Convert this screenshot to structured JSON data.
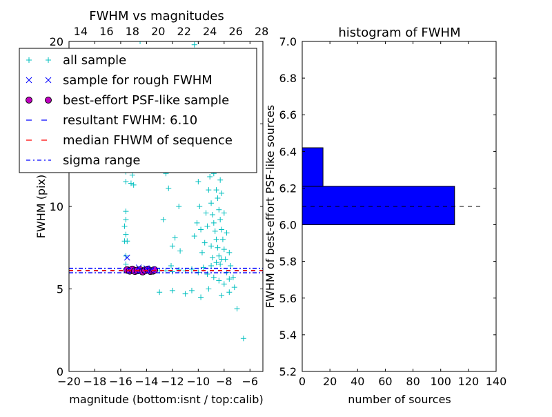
{
  "chart_data": [
    {
      "type": "scatter",
      "title": "FWHM vs magnitudes",
      "xlabel": "magnitude (bottom:isnt / top:calib)",
      "ylabel": "FWHM (pix)",
      "xlim": [
        -20,
        -5
      ],
      "ylim": [
        0,
        20
      ],
      "xticks": [
        "−20",
        "−18",
        "−16",
        "−14",
        "−12",
        "−10",
        "−8",
        "−6"
      ],
      "xtick_values": [
        -20,
        -18,
        -16,
        -14,
        -12,
        -10,
        -8,
        -6
      ],
      "top_xticks": [
        "14",
        "16",
        "18",
        "20",
        "22",
        "24",
        "26",
        "28"
      ],
      "top_xtick_values": [
        14,
        16,
        18,
        20,
        22,
        24,
        26,
        28
      ],
      "top_offset": 33.1,
      "yticks": [
        "0",
        "5",
        "10",
        "15",
        "20"
      ],
      "ytick_values": [
        0,
        5,
        10,
        15,
        20
      ],
      "legend": {
        "placement": "top-left",
        "entries": [
          {
            "label": "all sample",
            "marker": "plus",
            "color": "#00bfbf"
          },
          {
            "label": "sample for rough FWHM",
            "marker": "x",
            "color": "#0000ff"
          },
          {
            "label": "best-effort PSF-like sample",
            "marker": "circle",
            "color": "#bf00bf"
          },
          {
            "label": "resultant FWHM: 6.10",
            "marker": "dashed",
            "color": "#0000ff"
          },
          {
            "label": "median FHWM of sequence",
            "marker": "dashed",
            "color": "#ff0000"
          },
          {
            "label": "sigma range",
            "marker": "dashdot",
            "color": "#0000ff"
          }
        ]
      },
      "series": [
        {
          "name": "all sample",
          "color": "#00bfbf",
          "points": [
            [
              -15.6,
              6.5
            ],
            [
              -15.6,
              7.0
            ],
            [
              -15.7,
              7.9
            ],
            [
              -15.5,
              7.9
            ],
            [
              -15.6,
              8.3
            ],
            [
              -15.7,
              8.8
            ],
            [
              -15.6,
              9.2
            ],
            [
              -15.6,
              9.7
            ],
            [
              -15.6,
              11.5
            ],
            [
              -15.6,
              12.1
            ],
            [
              -15.2,
              11.4
            ],
            [
              -15.1,
              11.9
            ],
            [
              -15.0,
              11.3
            ],
            [
              -15.3,
              12.5
            ],
            [
              -14.5,
              20.0
            ],
            [
              -10.3,
              19.8
            ],
            [
              -12.5,
              12.0
            ],
            [
              -12.7,
              9.2
            ],
            [
              -11.8,
              8.1
            ],
            [
              -12.0,
              7.6
            ],
            [
              -11.4,
              7.3
            ],
            [
              -12.3,
              11.1
            ],
            [
              -12.1,
              6.4
            ],
            [
              -11.0,
              12.4
            ],
            [
              -11.5,
              10.0
            ],
            [
              -13.0,
              4.8
            ],
            [
              -12.0,
              4.9
            ],
            [
              -11.0,
              4.7
            ],
            [
              -6.5,
              2.0
            ],
            [
              -7.0,
              3.8
            ],
            [
              -10.5,
              4.9
            ],
            [
              -9.8,
              4.5
            ],
            [
              -8.2,
              4.6
            ],
            [
              -7.6,
              4.8
            ],
            [
              -7.2,
              5.1
            ],
            [
              -9.2,
              5.0
            ],
            [
              -13.0,
              6.1
            ],
            [
              -12.5,
              6.1
            ],
            [
              -12.0,
              6.05
            ],
            [
              -11.5,
              6.15
            ],
            [
              -11.0,
              6.1
            ],
            [
              -10.5,
              6.2
            ],
            [
              -10.0,
              6.0
            ],
            [
              -9.6,
              6.3
            ],
            [
              -9.3,
              5.9
            ],
            [
              -9.0,
              6.4
            ],
            [
              -8.8,
              5.7
            ],
            [
              -8.6,
              6.6
            ],
            [
              -8.4,
              5.5
            ],
            [
              -8.2,
              6.8
            ],
            [
              -8.0,
              5.3
            ],
            [
              -7.8,
              6.0
            ],
            [
              -7.6,
              5.6
            ],
            [
              -10.0,
              11.5
            ],
            [
              -9.8,
              12.8
            ],
            [
              -9.6,
              13.5
            ],
            [
              -9.4,
              14.2
            ],
            [
              -9.2,
              11.0
            ],
            [
              -9.0,
              10.2
            ],
            [
              -8.9,
              9.5
            ],
            [
              -8.8,
              9.0
            ],
            [
              -8.7,
              8.5
            ],
            [
              -8.6,
              8.0
            ],
            [
              -8.5,
              7.5
            ],
            [
              -8.4,
              7.0
            ],
            [
              -8.3,
              6.5
            ],
            [
              -8.8,
              12.0
            ],
            [
              -9.1,
              13.0
            ],
            [
              -8.6,
              11.0
            ],
            [
              -8.5,
              10.5
            ],
            [
              -8.4,
              9.8
            ],
            [
              -8.3,
              9.2
            ],
            [
              -8.2,
              8.6
            ],
            [
              -8.1,
              8.0
            ],
            [
              -8.0,
              7.4
            ],
            [
              -7.9,
              6.8
            ],
            [
              -9.5,
              16.5
            ],
            [
              -9.3,
              17.5
            ],
            [
              -9.2,
              15.8
            ],
            [
              -9.0,
              16.0
            ],
            [
              -8.9,
              14.5
            ],
            [
              -8.7,
              13.8
            ],
            [
              -9.7,
              15.0
            ],
            [
              -10.2,
              14.0
            ],
            [
              -9.9,
              10.0
            ],
            [
              -10.1,
              9.0
            ],
            [
              -10.3,
              8.2
            ],
            [
              -9.5,
              7.8
            ],
            [
              -9.7,
              7.2
            ],
            [
              -9.0,
              7.6
            ],
            [
              -8.9,
              6.9
            ],
            [
              -9.3,
              8.8
            ],
            [
              -9.4,
              9.6
            ],
            [
              -8.2,
              10.8
            ],
            [
              -8.0,
              9.6
            ],
            [
              -7.8,
              8.4
            ],
            [
              -7.6,
              7.2
            ],
            [
              -7.5,
              6.4
            ],
            [
              -7.3,
              5.7
            ],
            [
              -8.5,
              12.4
            ],
            [
              -8.3,
              11.6
            ],
            [
              -9.1,
              11.8
            ],
            [
              -9.6,
              12.2
            ],
            [
              -10.0,
              12.6
            ],
            [
              -9.8,
              8.6
            ],
            [
              -15.4,
              6.1
            ],
            [
              -14.8,
              6.1
            ],
            [
              -14.2,
              6.2
            ],
            [
              -13.6,
              6.1
            ],
            [
              -13.4,
              6.15
            ]
          ]
        },
        {
          "name": "sample for rough FWHM",
          "color": "#0000ff",
          "points": [
            [
              -15.5,
              6.9
            ],
            [
              -14.6,
              6.3
            ],
            [
              -14.0,
              6.25
            ],
            [
              -13.6,
              6.2
            ]
          ]
        },
        {
          "name": "best-effort PSF-like sample",
          "color": "#bf00bf",
          "points": [
            [
              -15.5,
              6.15
            ],
            [
              -15.3,
              6.1
            ],
            [
              -15.1,
              6.18
            ],
            [
              -14.9,
              6.08
            ],
            [
              -14.7,
              6.12
            ],
            [
              -14.5,
              6.15
            ],
            [
              -14.3,
              6.05
            ],
            [
              -14.1,
              6.12
            ],
            [
              -13.9,
              6.18
            ],
            [
              -13.7,
              6.08
            ],
            [
              -13.5,
              6.1
            ],
            [
              -13.4,
              6.15
            ]
          ]
        }
      ],
      "hlines": [
        {
          "name": "resultant FWHM",
          "y": 6.1,
          "style": "dashed",
          "color": "#0000ff"
        },
        {
          "name": "median FHWM of sequence",
          "y": 6.12,
          "style": "dashed",
          "color": "#ff0000"
        },
        {
          "name": "sigma range low",
          "y": 5.98,
          "style": "dashdot",
          "color": "#0000ff"
        },
        {
          "name": "sigma range high",
          "y": 6.25,
          "style": "dashdot",
          "color": "#0000ff"
        }
      ]
    },
    {
      "type": "bar",
      "orientation": "horizontal",
      "title": "histogram of FWHM",
      "xlabel": "number of sources",
      "ylabel": "FWHM of best-effort PSF-like sources",
      "xlim": [
        0,
        140
      ],
      "ylim": [
        5.2,
        7.0
      ],
      "xticks": [
        "0",
        "20",
        "40",
        "60",
        "80",
        "100",
        "120",
        "140"
      ],
      "xtick_values": [
        0,
        20,
        40,
        60,
        80,
        100,
        120,
        140
      ],
      "yticks": [
        "5.2",
        "5.4",
        "5.6",
        "5.8",
        "6.0",
        "6.2",
        "6.4",
        "6.6",
        "6.8",
        "7.0"
      ],
      "ytick_values": [
        5.2,
        5.4,
        5.6,
        5.8,
        6.0,
        6.2,
        6.4,
        6.6,
        6.8,
        7.0
      ],
      "bins": [
        [
          6.0,
          6.21
        ],
        [
          6.21,
          6.42
        ]
      ],
      "values": [
        110,
        15
      ],
      "color": "#0000ff",
      "reference_line": {
        "y": 6.1,
        "x_max": 130,
        "style": "dashed",
        "color": "#000000"
      }
    }
  ]
}
